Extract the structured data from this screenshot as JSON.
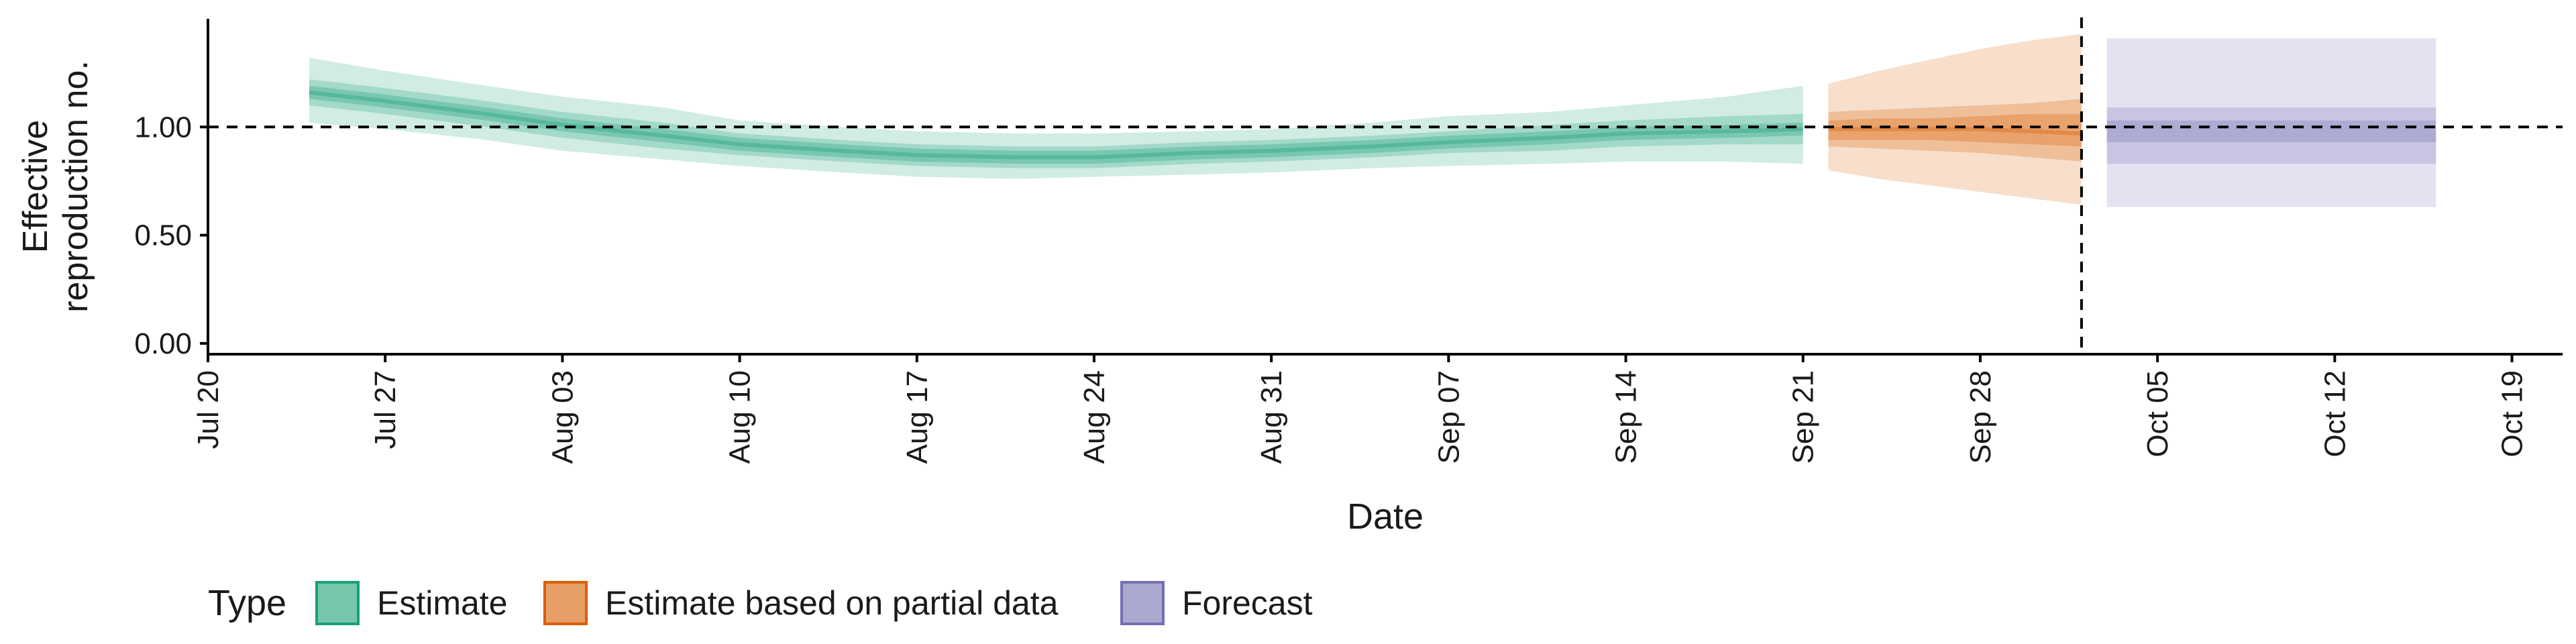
{
  "chart_data": {
    "type": "area",
    "title": "",
    "xlabel": "Date",
    "ylabel_lines": [
      "Effective",
      "reproduction no."
    ],
    "ylim": [
      -0.05,
      1.5
    ],
    "yticks": [
      0,
      0.5,
      1.0
    ],
    "ytick_labels": [
      "0.00",
      "0.50",
      "1.00"
    ],
    "xlim": [
      "2020-07-20",
      "2020-10-21"
    ],
    "xticks": [
      "2020-07-20",
      "2020-07-27",
      "2020-08-03",
      "2020-08-10",
      "2020-08-17",
      "2020-08-24",
      "2020-08-31",
      "2020-09-07",
      "2020-09-14",
      "2020-09-21",
      "2020-09-28",
      "2020-10-05",
      "2020-10-12",
      "2020-10-19"
    ],
    "xtick_labels": [
      "Jul 20",
      "Jul 27",
      "Aug 03",
      "Aug 10",
      "Aug 17",
      "Aug 24",
      "Aug 31",
      "Sep 07",
      "Sep 14",
      "Sep 21",
      "Sep 28",
      "Oct 05",
      "Oct 12",
      "Oct 19"
    ],
    "reference_hline": 1.0,
    "reference_vline": "2020-10-02",
    "legend_title": "Type",
    "legend_position": "bottom-left",
    "series": [
      {
        "name": "Estimate",
        "color": "#1b9e77",
        "x": [
          "2020-07-24",
          "2020-07-27",
          "2020-07-31",
          "2020-08-03",
          "2020-08-07",
          "2020-08-10",
          "2020-08-14",
          "2020-08-17",
          "2020-08-21",
          "2020-08-24",
          "2020-08-28",
          "2020-08-31",
          "2020-09-04",
          "2020-09-07",
          "2020-09-11",
          "2020-09-14",
          "2020-09-18",
          "2020-09-21"
        ],
        "median": [
          1.16,
          1.12,
          1.06,
          1.01,
          0.96,
          0.92,
          0.89,
          0.87,
          0.86,
          0.86,
          0.88,
          0.89,
          0.91,
          0.93,
          0.95,
          0.97,
          0.98,
          0.99
        ],
        "ci20": [
          [
            1.13,
            1.19
          ],
          [
            1.09,
            1.15
          ],
          [
            1.03,
            1.09
          ],
          [
            0.98,
            1.04
          ],
          [
            0.93,
            0.99
          ],
          [
            0.89,
            0.95
          ],
          [
            0.86,
            0.92
          ],
          [
            0.84,
            0.9
          ],
          [
            0.83,
            0.89
          ],
          [
            0.83,
            0.89
          ],
          [
            0.85,
            0.91
          ],
          [
            0.86,
            0.92
          ],
          [
            0.88,
            0.94
          ],
          [
            0.9,
            0.96
          ],
          [
            0.92,
            0.98
          ],
          [
            0.94,
            1.0
          ],
          [
            0.95,
            1.01
          ],
          [
            0.96,
            1.02
          ]
        ],
        "ci50": [
          [
            1.1,
            1.22
          ],
          [
            1.06,
            1.18
          ],
          [
            1.0,
            1.12
          ],
          [
            0.95,
            1.07
          ],
          [
            0.9,
            1.02
          ],
          [
            0.87,
            0.97
          ],
          [
            0.84,
            0.94
          ],
          [
            0.82,
            0.92
          ],
          [
            0.81,
            0.91
          ],
          [
            0.81,
            0.91
          ],
          [
            0.83,
            0.93
          ],
          [
            0.84,
            0.94
          ],
          [
            0.86,
            0.96
          ],
          [
            0.88,
            0.98
          ],
          [
            0.89,
            1.01
          ],
          [
            0.91,
            1.03
          ],
          [
            0.92,
            1.05
          ],
          [
            0.92,
            1.06
          ]
        ],
        "ci90": [
          [
            1.02,
            1.32
          ],
          [
            0.99,
            1.26
          ],
          [
            0.94,
            1.19
          ],
          [
            0.89,
            1.14
          ],
          [
            0.85,
            1.09
          ],
          [
            0.82,
            1.03
          ],
          [
            0.79,
            1.0
          ],
          [
            0.77,
            0.98
          ],
          [
            0.76,
            0.97
          ],
          [
            0.77,
            0.97
          ],
          [
            0.78,
            0.98
          ],
          [
            0.79,
            0.99
          ],
          [
            0.81,
            1.02
          ],
          [
            0.82,
            1.05
          ],
          [
            0.83,
            1.07
          ],
          [
            0.84,
            1.1
          ],
          [
            0.84,
            1.14
          ],
          [
            0.83,
            1.19
          ]
        ]
      },
      {
        "name": "Estimate based on partial data",
        "color": "#d95f02",
        "x": [
          "2020-09-22",
          "2020-09-24",
          "2020-09-26",
          "2020-09-28",
          "2020-09-30",
          "2020-10-02"
        ],
        "median": [
          0.99,
          0.99,
          0.99,
          0.99,
          0.98,
          0.97
        ],
        "ci20": [
          [
            0.94,
            1.03
          ],
          [
            0.94,
            1.04
          ],
          [
            0.94,
            1.04
          ],
          [
            0.93,
            1.05
          ],
          [
            0.92,
            1.06
          ],
          [
            0.91,
            1.06
          ]
        ],
        "ci50": [
          [
            0.91,
            1.07
          ],
          [
            0.9,
            1.08
          ],
          [
            0.89,
            1.09
          ],
          [
            0.88,
            1.1
          ],
          [
            0.86,
            1.11
          ],
          [
            0.84,
            1.13
          ]
        ],
        "ci90": [
          [
            0.8,
            1.2
          ],
          [
            0.76,
            1.26
          ],
          [
            0.73,
            1.31
          ],
          [
            0.7,
            1.36
          ],
          [
            0.67,
            1.4
          ],
          [
            0.64,
            1.43
          ]
        ]
      },
      {
        "name": "Forecast",
        "color": "#7570b3",
        "x": [
          "2020-10-03",
          "2020-10-16"
        ],
        "ci20": [
          [
            0.93,
            1.03
          ],
          [
            0.93,
            1.03
          ]
        ],
        "ci50": [
          [
            0.83,
            1.09
          ],
          [
            0.83,
            1.09
          ]
        ],
        "ci90": [
          [
            0.63,
            1.41
          ],
          [
            0.63,
            1.41
          ]
        ]
      }
    ]
  }
}
